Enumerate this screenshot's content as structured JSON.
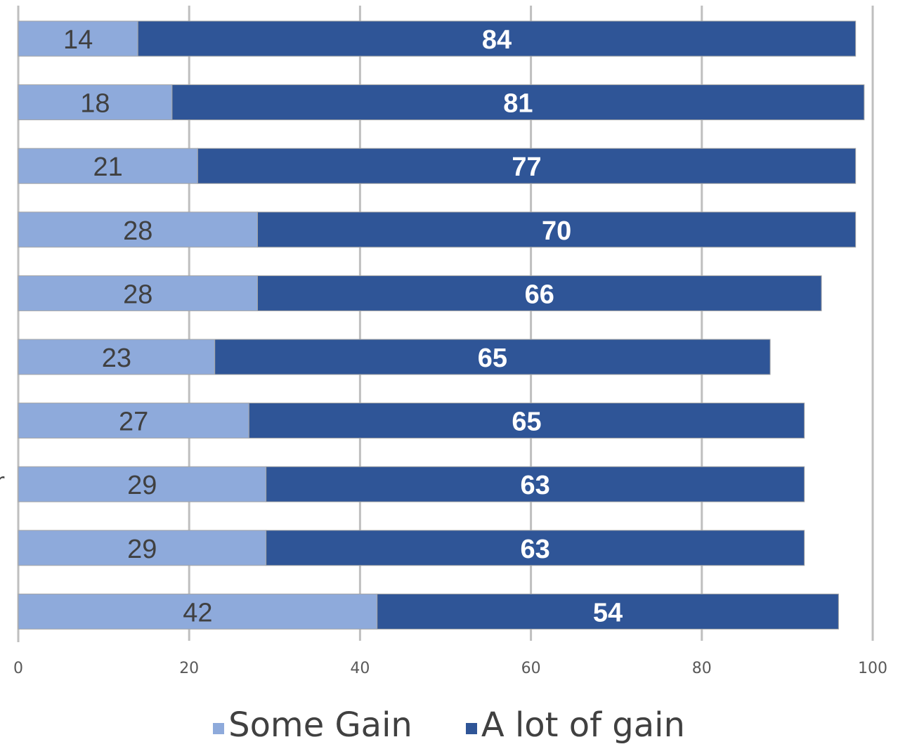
{
  "chart_data": {
    "type": "bar",
    "orientation": "horizontal",
    "stacked": true,
    "categories": [
      "",
      "",
      "",
      "",
      "",
      "",
      "",
      "",
      "",
      ""
    ],
    "series": [
      {
        "name": "Some Gain",
        "values": [
          14,
          18,
          21,
          28,
          28,
          23,
          27,
          29,
          29,
          42
        ],
        "color": "#8eaadb"
      },
      {
        "name": "A lot of gain",
        "values": [
          84,
          81,
          77,
          70,
          66,
          65,
          65,
          63,
          63,
          54
        ],
        "color": "#2f5597"
      }
    ],
    "xlim": [
      0,
      100
    ],
    "xticks": [
      "0",
      "20",
      "40",
      "60",
      "80",
      "100"
    ],
    "grid": true,
    "legend_position": "bottom",
    "title": "",
    "xlabel": "",
    "ylabel": ""
  },
  "cut_off_category_fragment": "r"
}
